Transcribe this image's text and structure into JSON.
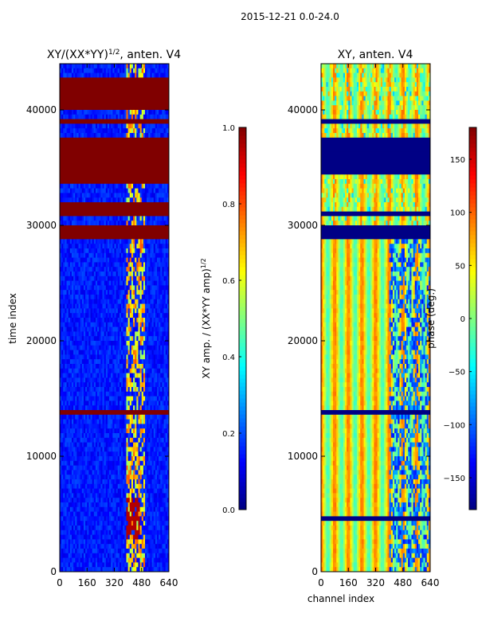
{
  "figure": {
    "suptitle": "2015-12-21 0.0-24.0"
  },
  "chart_data": [
    {
      "type": "heatmap",
      "title": "XY/(XX*YY)",
      "title_exponent": "1/2",
      "title_suffix": ", anten. V4",
      "xlabel": "",
      "ylabel": "time index",
      "xlim": [
        0,
        640
      ],
      "ylim": [
        0,
        44000
      ],
      "xticks": [
        0,
        160,
        320,
        480,
        640
      ],
      "yticks": [
        0,
        10000,
        20000,
        30000,
        40000
      ],
      "xtick_labels": [
        "0",
        "160",
        "320",
        "480",
        "640"
      ],
      "ytick_labels": [
        "0",
        "10000",
        "20000",
        "30000",
        "40000"
      ],
      "colormap": "jet",
      "colorbar": {
        "range": [
          0.0,
          1.0
        ],
        "ticks": [
          0.0,
          0.2,
          0.4,
          0.6,
          0.8,
          1.0
        ],
        "tick_labels": [
          "0.0",
          "0.2",
          "0.4",
          "0.6",
          "0.8",
          "1.0"
        ],
        "label": "XY amp. / (XX*YY amp)",
        "label_exponent": "1/2"
      },
      "background_level": 0.1,
      "saturated_bands": [
        [
          29000,
          29800
        ],
        [
          30800,
          31800
        ],
        [
          33600,
          34200
        ],
        [
          34500,
          37600
        ],
        [
          38800,
          39100
        ],
        [
          40200,
          41100
        ],
        [
          41400,
          42900
        ],
        [
          13700,
          14000
        ]
      ],
      "bright_channel_range": [
        390,
        500
      ],
      "bright_channel_level": 0.5,
      "hot_spot_region": {
        "channels": [
          390,
          470
        ],
        "times": [
          3000,
          6500
        ],
        "level": 0.95
      }
    },
    {
      "type": "heatmap",
      "title": "XY, anten. V4",
      "xlabel": "channel index",
      "ylabel": "",
      "xlim": [
        0,
        640
      ],
      "ylim": [
        0,
        44000
      ],
      "xticks": [
        0,
        160,
        320,
        480,
        640
      ],
      "yticks": [
        0,
        10000,
        20000,
        30000,
        40000
      ],
      "xtick_labels": [
        "0",
        "160",
        "320",
        "480",
        "640"
      ],
      "ytick_labels": [
        "0",
        "10000",
        "20000",
        "30000",
        "40000"
      ],
      "colormap": "jet",
      "colorbar": {
        "range": [
          -180,
          180
        ],
        "ticks": [
          -150,
          -100,
          -50,
          0,
          50,
          100,
          150
        ],
        "tick_labels": [
          "−150",
          "−100",
          "−50",
          "0",
          "50",
          "100",
          "150"
        ],
        "label": "phase (deg.)"
      },
      "flagged_bands": [
        [
          29000,
          29800
        ],
        [
          34500,
          37600
        ],
        [
          4500,
          4900
        ],
        [
          13700,
          14000
        ],
        [
          30800,
          31000
        ],
        [
          38800,
          39000
        ]
      ],
      "stripe_period_channels": 80,
      "right_region": {
        "channels": [
          400,
          640
        ],
        "times": [
          0,
          29000
        ],
        "level": -100
      }
    }
  ]
}
